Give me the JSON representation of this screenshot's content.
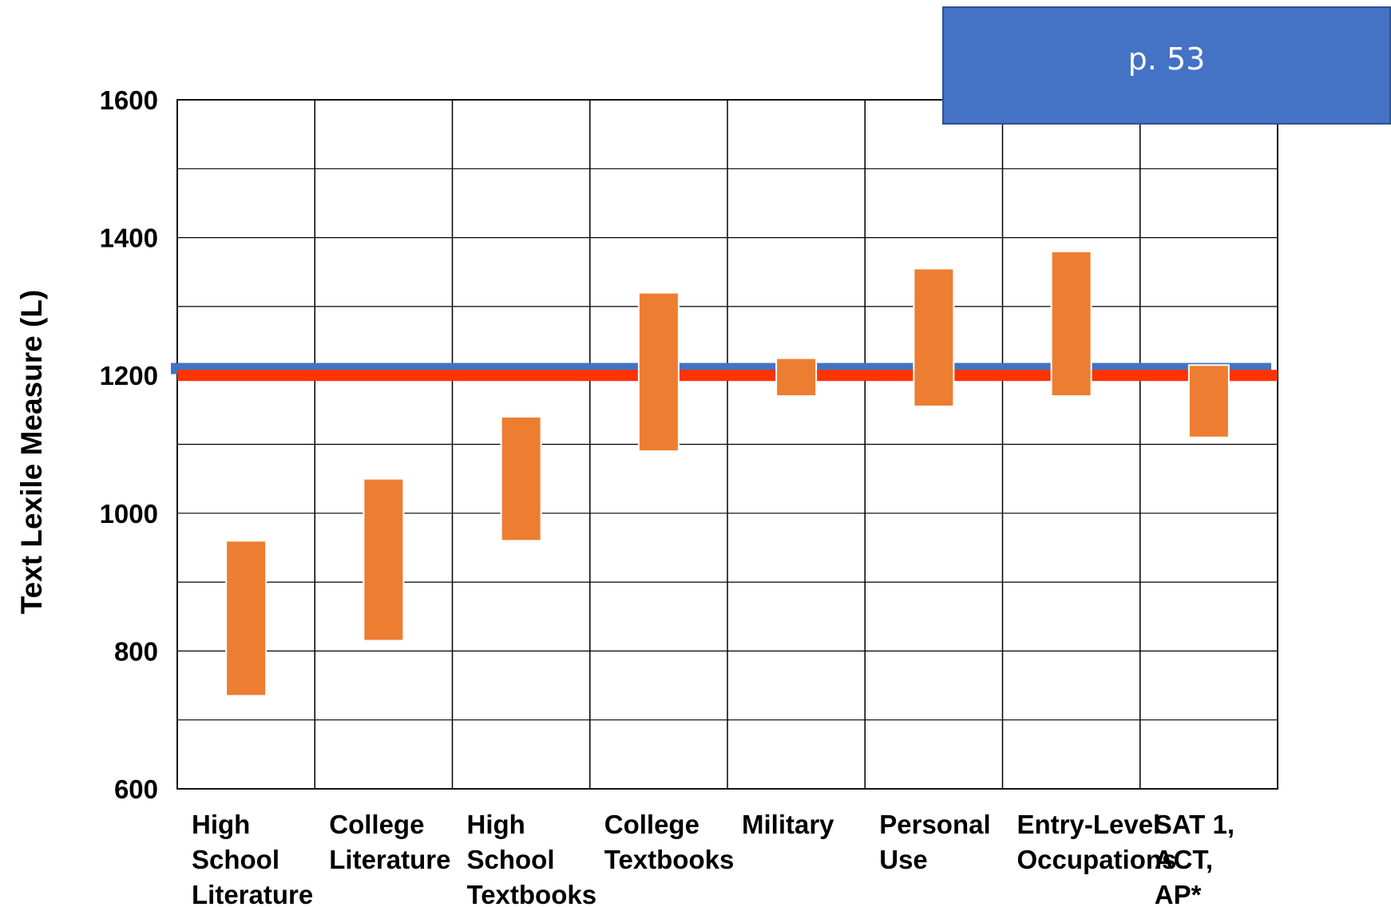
{
  "page_ref": "p. 53",
  "chart_data": {
    "type": "bar",
    "subtype": "floating-range",
    "ylabel": "Text Lexile Measure (L)",
    "ylim": [
      600,
      1600
    ],
    "yticks": [
      600,
      800,
      1000,
      1200,
      1400,
      1600
    ],
    "ytick_labels": [
      "600",
      "800",
      "1000",
      "1200",
      "1400",
      "1600"
    ],
    "grid": true,
    "categories": [
      [
        "High",
        "School",
        "Literature"
      ],
      [
        "College",
        "Literature"
      ],
      [
        "High",
        "School",
        "Textbooks"
      ],
      [
        "College",
        "Textbooks"
      ],
      [
        "Military"
      ],
      [
        "Personal",
        "Use"
      ],
      [
        "Entry-Level",
        "Occupations"
      ],
      [
        "SAT 1,",
        "ACT,",
        "AP*"
      ]
    ],
    "ranges": [
      [
        735,
        960
      ],
      [
        815,
        1050
      ],
      [
        960,
        1140
      ],
      [
        1090,
        1320
      ],
      [
        1170,
        1225
      ],
      [
        1155,
        1355
      ],
      [
        1170,
        1380
      ],
      [
        1110,
        1215
      ]
    ],
    "reference_lines": [
      {
        "value": 1210,
        "color": "#4472c4"
      },
      {
        "value": 1200,
        "color": "#ff3300"
      }
    ],
    "bar_color": "#ed7d31"
  }
}
